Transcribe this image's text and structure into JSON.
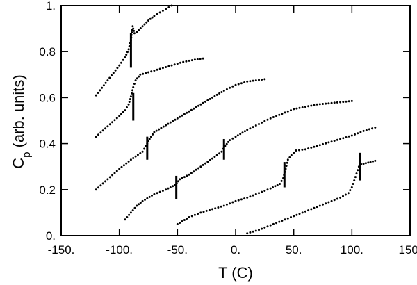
{
  "chart_data": {
    "type": "scatter",
    "xlabel": "T (C)",
    "ylabel_main": "C",
    "ylabel_sub": "p",
    "ylabel_rest": " (arb. units)",
    "xlim": [
      -150,
      150
    ],
    "ylim": [
      0,
      1
    ],
    "x_ticks": [
      -150,
      -100,
      -50,
      0,
      50,
      100,
      150
    ],
    "x_tick_labels": [
      "-150.",
      "-100.",
      "-50.",
      "0.",
      "50.",
      "100.",
      "150."
    ],
    "y_ticks": [
      0,
      0.2,
      0.4,
      0.6,
      0.8,
      1
    ],
    "y_tick_labels": [
      "0.",
      "0.2",
      "0.4",
      "0.6",
      "0.8",
      "1."
    ],
    "grid": false,
    "series": [
      {
        "values": [
          [
            -120,
            0.61
          ],
          [
            -110,
            0.675
          ],
          [
            -100,
            0.74
          ],
          [
            -95,
            0.775
          ],
          [
            -92,
            0.81
          ],
          [
            -90,
            0.85
          ],
          [
            -89,
            0.895
          ],
          [
            -88.5,
            0.91
          ],
          [
            -88,
            0.9
          ],
          [
            -87,
            0.88
          ],
          [
            -85,
            0.885
          ],
          [
            -80,
            0.91
          ],
          [
            -75,
            0.935
          ],
          [
            -70,
            0.955
          ],
          [
            -65,
            0.97
          ],
          [
            -60,
            0.985
          ],
          [
            -55,
            1.0
          ]
        ],
        "transition": {
          "x": -90,
          "y_low": 0.73,
          "y_high": 0.88
        }
      },
      {
        "values": [
          [
            -120,
            0.43
          ],
          [
            -110,
            0.475
          ],
          [
            -100,
            0.52
          ],
          [
            -95,
            0.545
          ],
          [
            -92,
            0.57
          ],
          [
            -90,
            0.605
          ],
          [
            -88,
            0.645
          ],
          [
            -86,
            0.675
          ],
          [
            -82,
            0.7
          ],
          [
            -75,
            0.71
          ],
          [
            -65,
            0.725
          ],
          [
            -55,
            0.74
          ],
          [
            -45,
            0.755
          ],
          [
            -35,
            0.765
          ],
          [
            -28,
            0.77
          ]
        ],
        "transition": {
          "x": -88,
          "y_low": 0.5,
          "y_high": 0.62
        }
      },
      {
        "values": [
          [
            -120,
            0.2
          ],
          [
            -110,
            0.245
          ],
          [
            -100,
            0.29
          ],
          [
            -90,
            0.33
          ],
          [
            -80,
            0.365
          ],
          [
            -77,
            0.39
          ],
          [
            -74,
            0.42
          ],
          [
            -70,
            0.45
          ],
          [
            -60,
            0.48
          ],
          [
            -50,
            0.51
          ],
          [
            -40,
            0.54
          ],
          [
            -30,
            0.57
          ],
          [
            -20,
            0.6
          ],
          [
            -10,
            0.63
          ],
          [
            0,
            0.655
          ],
          [
            10,
            0.67
          ],
          [
            25,
            0.68
          ]
        ],
        "transition": {
          "x": -76,
          "y_low": 0.33,
          "y_high": 0.43
        }
      },
      {
        "values": [
          [
            -95,
            0.07
          ],
          [
            -90,
            0.1
          ],
          [
            -85,
            0.13
          ],
          [
            -80,
            0.15
          ],
          [
            -70,
            0.18
          ],
          [
            -60,
            0.2
          ],
          [
            -52,
            0.22
          ],
          [
            -48,
            0.245
          ],
          [
            -40,
            0.265
          ],
          [
            -30,
            0.3
          ],
          [
            -20,
            0.335
          ],
          [
            -12,
            0.365
          ],
          [
            -9,
            0.39
          ],
          [
            -5,
            0.415
          ],
          [
            0,
            0.43
          ],
          [
            10,
            0.46
          ],
          [
            20,
            0.485
          ],
          [
            30,
            0.51
          ],
          [
            40,
            0.53
          ],
          [
            50,
            0.55
          ],
          [
            60,
            0.56
          ],
          [
            70,
            0.57
          ],
          [
            80,
            0.575
          ],
          [
            90,
            0.58
          ],
          [
            100,
            0.585
          ]
        ],
        "transition_note": "markers near x=-51 and x=-10",
        "transition": {
          "x": -51,
          "y_low": 0.16,
          "y_high": 0.26
        }
      },
      {
        "values": [
          [
            -50,
            0.05
          ],
          [
            -40,
            0.08
          ],
          [
            -30,
            0.1
          ],
          [
            -20,
            0.115
          ],
          [
            -10,
            0.13
          ],
          [
            0,
            0.15
          ],
          [
            10,
            0.165
          ],
          [
            20,
            0.185
          ],
          [
            30,
            0.205
          ],
          [
            38,
            0.225
          ],
          [
            41,
            0.25
          ],
          [
            43,
            0.29
          ],
          [
            45,
            0.33
          ],
          [
            48,
            0.35
          ],
          [
            52,
            0.37
          ],
          [
            60,
            0.375
          ],
          [
            70,
            0.39
          ],
          [
            80,
            0.405
          ],
          [
            90,
            0.42
          ],
          [
            100,
            0.435
          ],
          [
            110,
            0.455
          ],
          [
            120,
            0.47
          ]
        ],
        "transition": {
          "x": 42,
          "y_low": 0.21,
          "y_high": 0.32
        }
      },
      {
        "values": [
          [
            10,
            0.01
          ],
          [
            20,
            0.025
          ],
          [
            30,
            0.045
          ],
          [
            40,
            0.065
          ],
          [
            50,
            0.085
          ],
          [
            60,
            0.105
          ],
          [
            70,
            0.125
          ],
          [
            80,
            0.145
          ],
          [
            90,
            0.165
          ],
          [
            97,
            0.185
          ],
          [
            100,
            0.21
          ],
          [
            102,
            0.24
          ],
          [
            104,
            0.27
          ],
          [
            106,
            0.3
          ],
          [
            108,
            0.31
          ],
          [
            112,
            0.315
          ],
          [
            116,
            0.32
          ],
          [
            120,
            0.325
          ]
        ],
        "transition": {
          "x": 107,
          "y_low": 0.24,
          "y_high": 0.36
        }
      }
    ],
    "extra_markers": [
      {
        "x": -10,
        "y_low": 0.33,
        "y_high": 0.42
      }
    ]
  }
}
